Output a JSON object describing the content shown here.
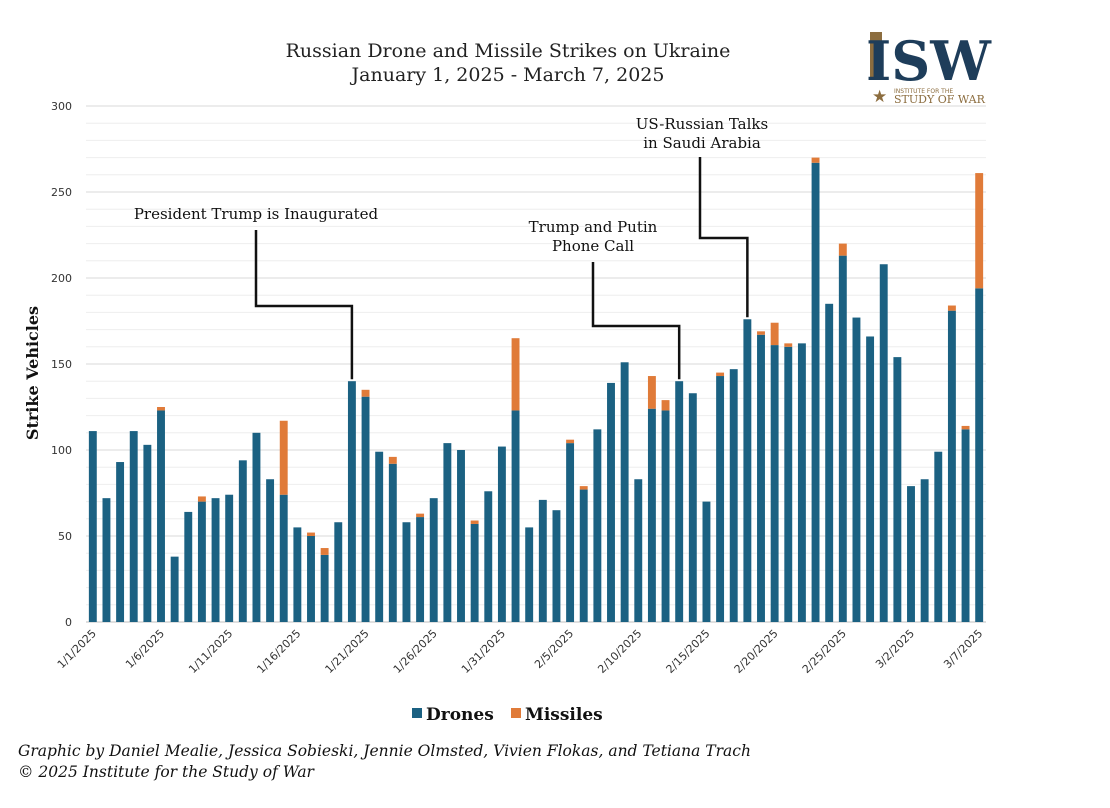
{
  "header": {
    "title_line1": "Russian Drone and Missile Strikes on Ukraine",
    "title_line2": "January 1, 2025 - March 7, 2025"
  },
  "logo": {
    "letters": "ISW",
    "line1": "INSTITUTE FOR THE",
    "line2": "STUDY OF WAR",
    "color_dark": "#1e3d5a",
    "color_gold": "#8c6d3f"
  },
  "footer": {
    "credit_line1": "Graphic by Daniel Mealie, Jessica Sobieski, Jennie Olmsted, Vivien Flokas, and Tetiana Trach",
    "credit_line2": "© 2025 Institute for the Study of War"
  },
  "chart_data": {
    "type": "bar",
    "stacked": true,
    "ylabel": "Strike Vehicles",
    "ylim": [
      0,
      300
    ],
    "yticks": [
      0,
      50,
      100,
      150,
      200,
      250,
      300
    ],
    "grid": true,
    "legend_position": "bottom",
    "x_start_date": "1/1/2025",
    "x_tick_labels": [
      "1/1/2025",
      "1/6/2025",
      "1/11/2025",
      "1/16/2025",
      "1/21/2025",
      "1/26/2025",
      "1/31/2025",
      "2/5/2025",
      "2/10/2025",
      "2/15/2025",
      "2/20/2025",
      "2/25/2025",
      "3/2/2025",
      "3/7/2025"
    ],
    "series": [
      {
        "name": "Drones",
        "color": "#1b6182",
        "values": [
          111,
          72,
          93,
          111,
          103,
          123,
          38,
          64,
          70,
          72,
          74,
          94,
          110,
          83,
          74,
          55,
          50,
          39,
          58,
          140,
          131,
          99,
          92,
          58,
          61,
          72,
          104,
          100,
          57,
          76,
          102,
          123,
          55,
          71,
          65,
          104,
          77,
          112,
          139,
          151,
          83,
          124,
          123,
          140,
          133,
          70,
          143,
          147,
          176,
          167,
          161,
          160,
          162,
          267,
          185,
          213,
          177,
          166,
          208,
          154,
          79,
          83,
          99,
          181,
          112,
          194
        ]
      },
      {
        "name": "Missiles",
        "color": "#e07b39",
        "values": [
          0,
          0,
          0,
          0,
          0,
          2,
          0,
          0,
          3,
          0,
          0,
          0,
          0,
          0,
          43,
          0,
          2,
          4,
          0,
          0,
          4,
          0,
          4,
          0,
          2,
          0,
          0,
          0,
          2,
          0,
          0,
          42,
          0,
          0,
          0,
          2,
          2,
          0,
          0,
          0,
          0,
          19,
          6,
          0,
          0,
          0,
          2,
          0,
          0,
          2,
          13,
          2,
          0,
          3,
          0,
          7,
          0,
          0,
          0,
          0,
          0,
          0,
          0,
          3,
          2,
          67
        ]
      }
    ],
    "annotations": [
      {
        "lines": [
          "President Trump is Inaugurated"
        ],
        "target_index": 19
      },
      {
        "lines": [
          "Trump and Putin",
          "Phone Call"
        ],
        "target_index": 43
      },
      {
        "lines": [
          "US-Russian Talks",
          "in Saudi Arabia"
        ],
        "target_index": 48
      }
    ]
  }
}
